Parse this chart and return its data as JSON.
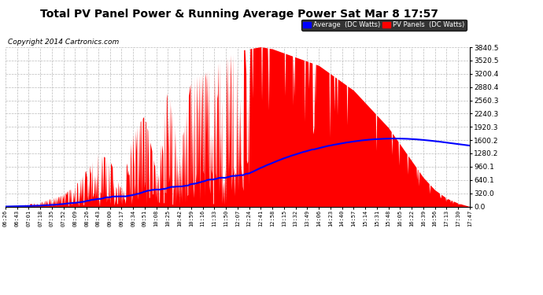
{
  "title": "Total PV Panel Power & Running Average Power Sat Mar 8 17:57",
  "copyright": "Copyright 2014 Cartronics.com",
  "ylabel_right_values": [
    0.0,
    320.0,
    640.1,
    960.1,
    1280.2,
    1600.2,
    1920.3,
    2240.3,
    2560.3,
    2880.4,
    3200.4,
    3520.5,
    3840.5
  ],
  "ymax": 3840.5,
  "ymin": 0.0,
  "bg_color": "#ffffff",
  "grid_color": "#bbbbbb",
  "pv_fill_color": "#ff0000",
  "avg_line_color": "#0000ff",
  "legend_avg_bg": "#0000ff",
  "legend_pv_bg": "#ff0000",
  "legend_avg_text": "Average  (DC Watts)",
  "legend_pv_text": "PV Panels  (DC Watts)",
  "title_fontsize": 10,
  "copyright_fontsize": 6.5,
  "time_labels": [
    "06:26",
    "06:43",
    "07:01",
    "07:18",
    "07:35",
    "07:52",
    "08:09",
    "08:26",
    "08:43",
    "09:00",
    "09:17",
    "09:34",
    "09:51",
    "10:08",
    "10:25",
    "10:42",
    "10:59",
    "11:16",
    "11:33",
    "11:50",
    "12:07",
    "12:24",
    "12:41",
    "12:58",
    "13:15",
    "13:32",
    "13:49",
    "14:06",
    "14:23",
    "14:40",
    "14:57",
    "15:14",
    "15:31",
    "15:48",
    "16:05",
    "16:22",
    "16:39",
    "16:56",
    "17:13",
    "17:30",
    "17:47"
  ]
}
